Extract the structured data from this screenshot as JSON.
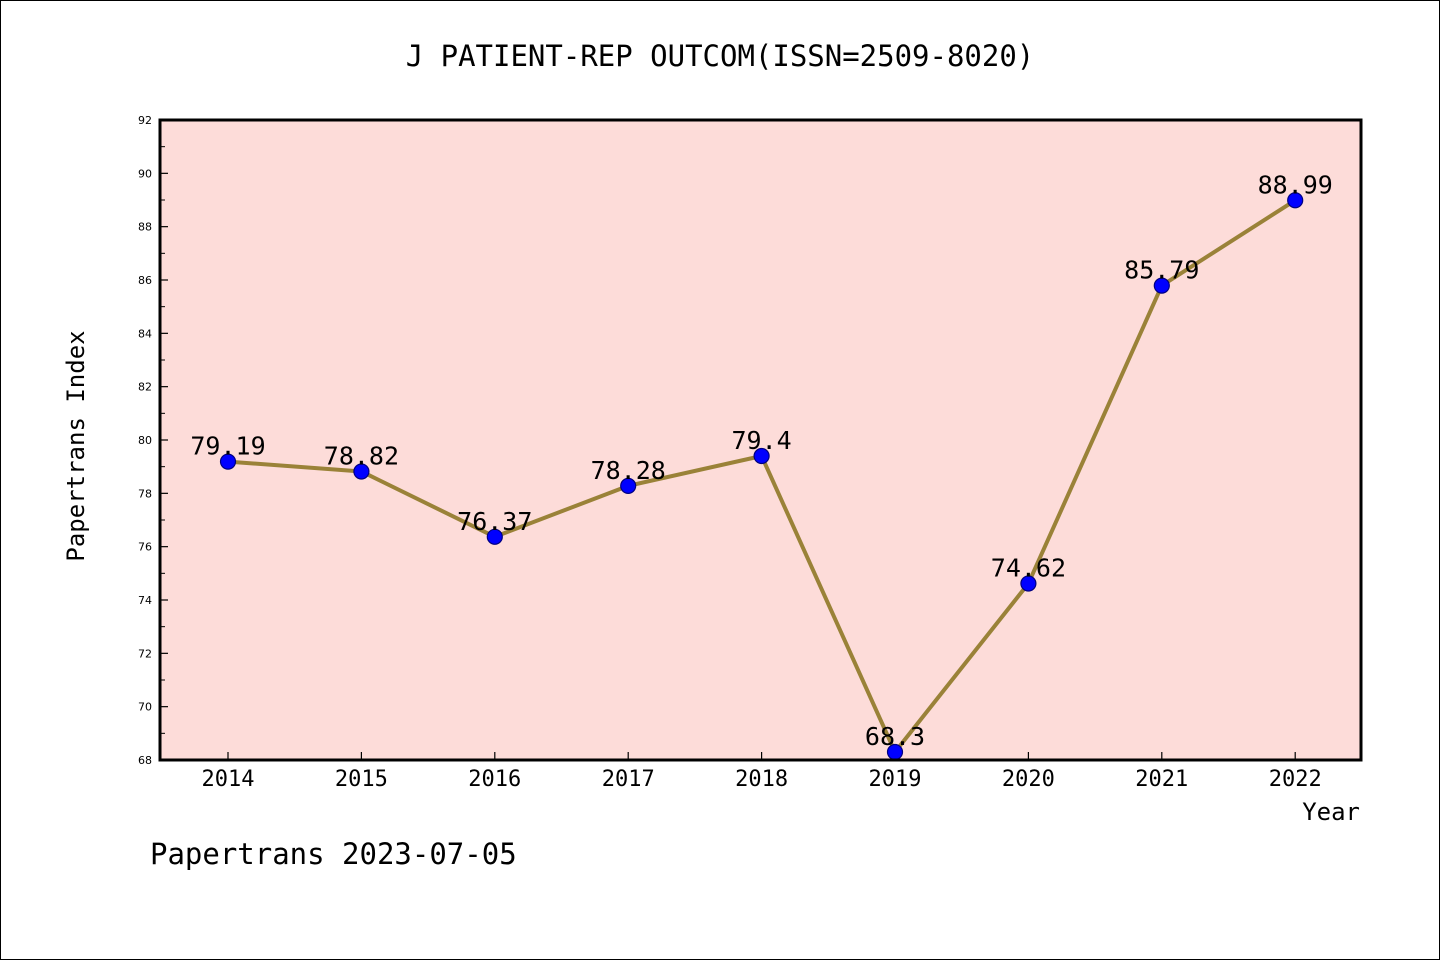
{
  "chart_data": {
    "type": "line",
    "title": "J PATIENT-REP OUTCOM(ISSN=2509-8020)",
    "xlabel": "Year",
    "ylabel": "Papertrans Index",
    "categories": [
      "2014",
      "2015",
      "2016",
      "2017",
      "2018",
      "2019",
      "2020",
      "2021",
      "2022"
    ],
    "series": [
      {
        "values": [
          79.19,
          78.82,
          76.37,
          78.28,
          79.4,
          68.3,
          74.62,
          85.79,
          88.99
        ],
        "labels": [
          "79.19",
          "78.82",
          "76.37",
          "78.28",
          "79.4",
          "68.3",
          "74.62",
          "85.79",
          "88.99"
        ]
      }
    ],
    "ylim": [
      68,
      92
    ],
    "yticks": [
      68,
      70,
      72,
      74,
      76,
      78,
      80,
      82,
      84,
      86,
      88,
      90,
      92
    ],
    "grid": false,
    "legend": "none"
  },
  "footer": {
    "text": "Papertrans 2023-07-05"
  },
  "colors": {
    "plot_background": "#fddcd9",
    "line": "#9a8238",
    "marker_fill": "#0000ff",
    "marker_edge": "#000080",
    "axes": "#000000"
  }
}
